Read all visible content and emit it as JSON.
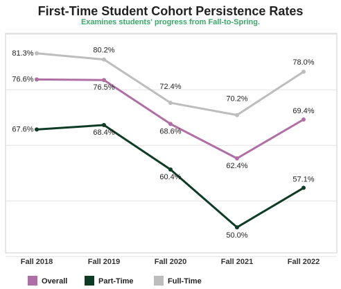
{
  "chart_data": {
    "type": "line",
    "title": "First-Time Student Cohort Persistence Rates",
    "subtitle": "Examines students' progress from Fall-to-Spring.",
    "categories": [
      "Fall 2018",
      "Fall 2019",
      "Fall 2020",
      "Fall 2021",
      "Fall 2022"
    ],
    "series": [
      {
        "name": "Overall",
        "values": [
          76.6,
          76.5,
          68.6,
          62.4,
          69.4
        ],
        "labels": [
          "76.6%",
          "76.5%",
          "68.6%",
          "62.4%",
          "69.4%"
        ],
        "color": "#b06fa4"
      },
      {
        "name": "Part-Time",
        "values": [
          67.6,
          68.4,
          60.4,
          50.0,
          57.1
        ],
        "labels": [
          "67.6%",
          "68.4%",
          "60.4%",
          "50.0%",
          "57.1%"
        ],
        "color": "#0d3b25"
      },
      {
        "name": "Full-Time",
        "values": [
          81.3,
          80.2,
          72.4,
          70.2,
          78.0
        ],
        "labels": [
          "81.3%",
          "80.2%",
          "72.4%",
          "70.2%",
          "78.0%"
        ],
        "color": "#bdbdbd"
      }
    ],
    "ylim": [
      45,
      85
    ],
    "grid": true,
    "legend": "bottom",
    "subtitle_color": "#3aa86b"
  }
}
